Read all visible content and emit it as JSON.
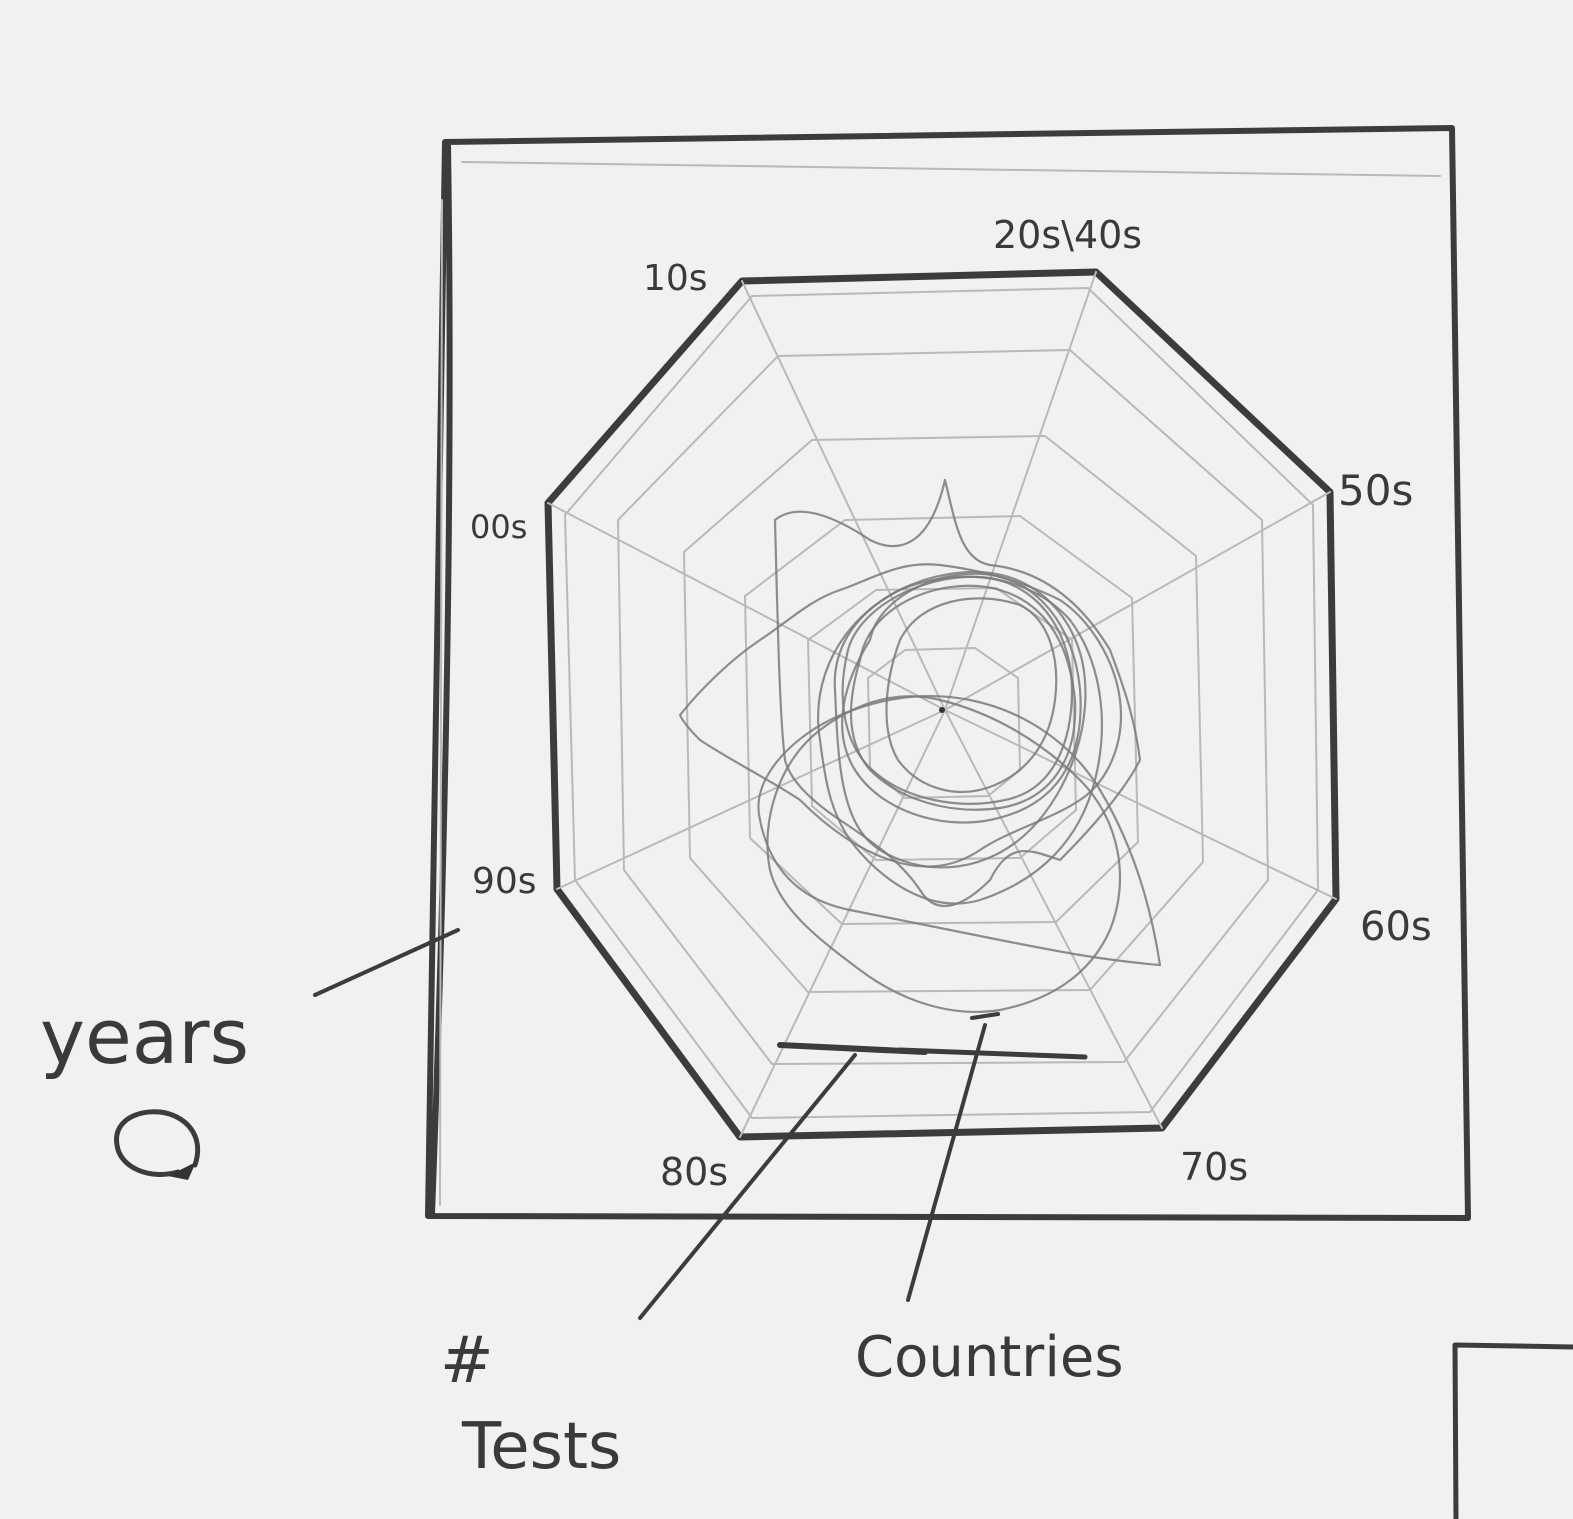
{
  "axes": {
    "labels": [
      "20s\\40s",
      "50s",
      "60s",
      "70s",
      "80s",
      "90s",
      "00s",
      "10s"
    ]
  },
  "annotations": {
    "years": "years",
    "tests_hash": "#",
    "tests": "Tests",
    "countries": "Countries"
  },
  "icons": {
    "rotate": "rotate-arrow-icon"
  }
}
